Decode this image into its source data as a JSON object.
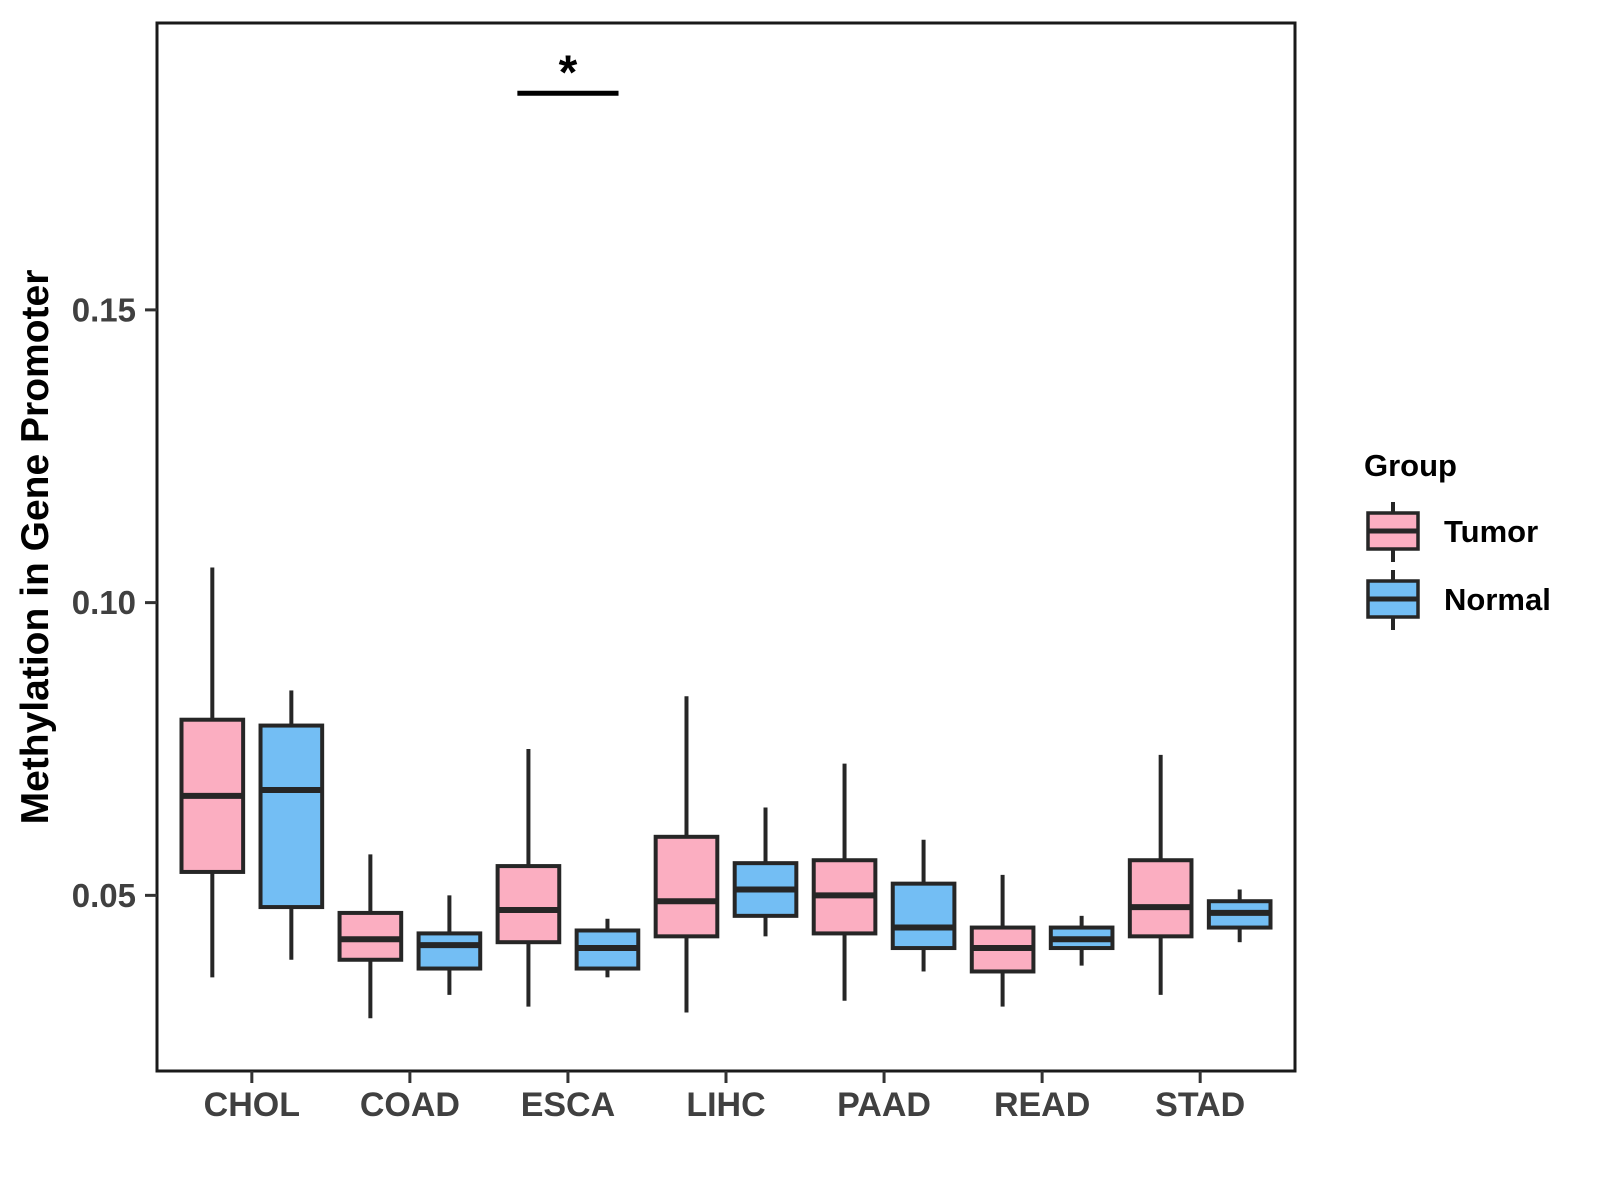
{
  "y_axis": {
    "label": "Methylation in Gene Promoter",
    "ticks": [
      "0.05",
      "0.10",
      "0.15"
    ],
    "tick_values": [
      0.05,
      0.1,
      0.15
    ]
  },
  "x_axis": {
    "categories": [
      "CHOL",
      "COAD",
      "ESCA",
      "LIHC",
      "PAAD",
      "READ",
      "STAD"
    ]
  },
  "legend": {
    "title": "Group",
    "items": [
      {
        "label": "Tumor",
        "color": "#FBAEC1"
      },
      {
        "label": "Normal",
        "color": "#73BEF4"
      }
    ]
  },
  "colors": {
    "box_stroke": "#262626",
    "panel_border": "#1a1a1a",
    "tick_mark": "#333333",
    "tick_label": "#404040",
    "annotation": "#000000"
  },
  "chart_data": {
    "type": "boxplot",
    "title": "",
    "xlabel": "",
    "ylabel": "Methylation in Gene Promoter",
    "categories": [
      "CHOL",
      "COAD",
      "ESCA",
      "LIHC",
      "PAAD",
      "READ",
      "STAD"
    ],
    "ylim": [
      0.02,
      0.199
    ],
    "y_ticks": [
      0.05,
      0.1,
      0.15
    ],
    "grid": false,
    "legend_position": "right",
    "series": [
      {
        "name": "Tumor",
        "fill": "#FBAEC1",
        "boxes": [
          {
            "low": 0.036,
            "q1": 0.054,
            "median": 0.067,
            "q3": 0.08,
            "high": 0.106
          },
          {
            "low": 0.029,
            "q1": 0.039,
            "median": 0.0425,
            "q3": 0.047,
            "high": 0.057
          },
          {
            "low": 0.031,
            "q1": 0.042,
            "median": 0.0475,
            "q3": 0.055,
            "high": 0.075
          },
          {
            "low": 0.03,
            "q1": 0.043,
            "median": 0.049,
            "q3": 0.06,
            "high": 0.084
          },
          {
            "low": 0.032,
            "q1": 0.0435,
            "median": 0.05,
            "q3": 0.056,
            "high": 0.0725
          },
          {
            "low": 0.031,
            "q1": 0.037,
            "median": 0.041,
            "q3": 0.0445,
            "high": 0.0535
          },
          {
            "low": 0.033,
            "q1": 0.043,
            "median": 0.048,
            "q3": 0.056,
            "high": 0.074
          }
        ]
      },
      {
        "name": "Normal",
        "fill": "#73BEF4",
        "boxes": [
          {
            "low": 0.039,
            "q1": 0.048,
            "median": 0.068,
            "q3": 0.079,
            "high": 0.085
          },
          {
            "low": 0.033,
            "q1": 0.0375,
            "median": 0.0415,
            "q3": 0.0435,
            "high": 0.05
          },
          {
            "low": 0.036,
            "q1": 0.0375,
            "median": 0.041,
            "q3": 0.044,
            "high": 0.046
          },
          {
            "low": 0.043,
            "q1": 0.0465,
            "median": 0.051,
            "q3": 0.0555,
            "high": 0.065
          },
          {
            "low": 0.037,
            "q1": 0.041,
            "median": 0.0445,
            "q3": 0.052,
            "high": 0.0595
          },
          {
            "low": 0.038,
            "q1": 0.041,
            "median": 0.0425,
            "q3": 0.0445,
            "high": 0.0465
          },
          {
            "low": 0.042,
            "q1": 0.0445,
            "median": 0.047,
            "q3": 0.049,
            "high": 0.051
          }
        ]
      }
    ],
    "annotation": {
      "text": "*",
      "category": "ESCA",
      "bar_y_value": 0.187,
      "bar_halfwidth_units": 0.32
    }
  }
}
